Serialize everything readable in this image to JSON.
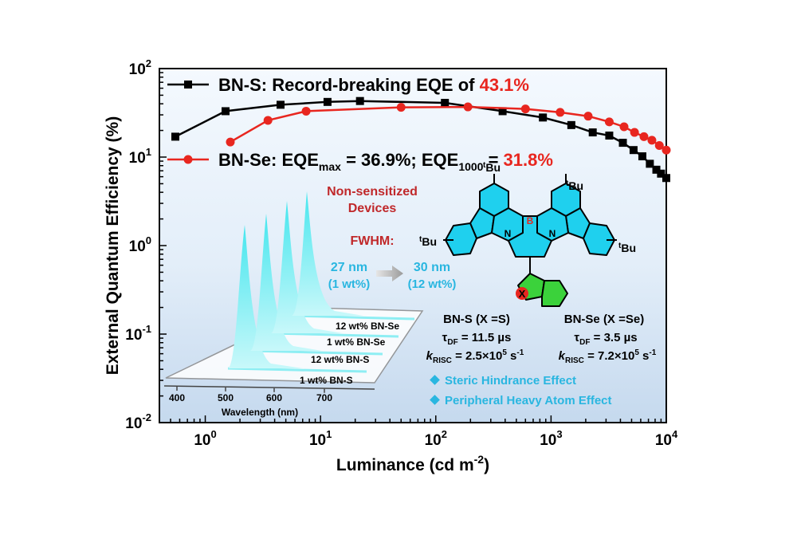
{
  "chart_data": {
    "type": "line",
    "xscale": "log",
    "yscale": "log",
    "xlim": [
      0.4,
      10000
    ],
    "ylim": [
      0.01,
      100
    ],
    "xlabel": "Luminance (cd m",
    "xlabel_sup": "-2",
    "xlabel_end": ")",
    "ylabel": "External Quantum Efficiency (%)",
    "xticks": [
      {
        "v": 1,
        "base": "10",
        "exp": "0"
      },
      {
        "v": 10,
        "base": "10",
        "exp": "1"
      },
      {
        "v": 100,
        "base": "10",
        "exp": "2"
      },
      {
        "v": 1000,
        "base": "10",
        "exp": "3"
      },
      {
        "v": 10000,
        "base": "10",
        "exp": "4"
      }
    ],
    "yticks": [
      {
        "v": 100,
        "base": "10",
        "exp": "2"
      },
      {
        "v": 10,
        "base": "10",
        "exp": "1"
      },
      {
        "v": 1,
        "base": "10",
        "exp": "0"
      },
      {
        "v": 0.1,
        "base": "10",
        "exp": "-1"
      },
      {
        "v": 0.01,
        "base": "10",
        "exp": "-2"
      }
    ],
    "series": [
      {
        "id": "bns",
        "color": "#000000",
        "marker": "square",
        "points": [
          [
            0.55,
            17
          ],
          [
            1.5,
            33
          ],
          [
            4.5,
            39
          ],
          [
            11.5,
            42
          ],
          [
            22,
            43
          ],
          [
            120,
            41
          ],
          [
            380,
            33
          ],
          [
            850,
            28
          ],
          [
            1500,
            23
          ],
          [
            2300,
            19
          ],
          [
            3200,
            17.5
          ],
          [
            4200,
            14.5
          ],
          [
            5200,
            12
          ],
          [
            6200,
            10.2
          ],
          [
            7200,
            8.4
          ],
          [
            8200,
            7.2
          ],
          [
            9000,
            6.5
          ],
          [
            10000,
            5.8
          ]
        ]
      },
      {
        "id": "bnse",
        "color": "#e8261f",
        "marker": "circle",
        "points": [
          [
            1.65,
            14.8
          ],
          [
            3.5,
            26
          ],
          [
            7.5,
            33
          ],
          [
            50,
            36.5
          ],
          [
            190,
            36.9
          ],
          [
            600,
            35
          ],
          [
            1200,
            32
          ],
          [
            2100,
            29
          ],
          [
            3200,
            25
          ],
          [
            4300,
            22
          ],
          [
            5300,
            19
          ],
          [
            6400,
            17
          ],
          [
            7500,
            15.5
          ],
          [
            8700,
            13.5
          ],
          [
            10000,
            12
          ]
        ]
      }
    ],
    "legend": [
      {
        "series": "bns",
        "text": "BN-S: Record-breaking EQE of ",
        "highlight": "43.1%"
      },
      {
        "series": "bnse",
        "t1": "BN-Se: EQE",
        "s1": "max",
        "t2": " = 36.9%; EQE",
        "s2": "1000",
        "t3": " = ",
        "highlight": "31.8%"
      }
    ],
    "inset": {
      "title_line1": "Non-sensitized",
      "title_line2": "Devices",
      "fwhm_label": "FWHM:",
      "fwhm_from": "27 nm",
      "fwhm_from_sub": "(1 wt%)",
      "fwhm_to": "30 nm",
      "fwhm_to_sub": "(12 wt%)",
      "spectra_labels": [
        "12 wt% BN-Se",
        "1 wt% BN-Se",
        "12 wt% BN-S",
        "1 wt% BN-S"
      ],
      "wavelength_ticks": [
        "400",
        "500",
        "600",
        "700"
      ],
      "wavelength_label": "Wavelength (nm)"
    },
    "molecule": {
      "boron": "B",
      "nitrogen": "N",
      "tbu_sup": "t",
      "tbu": "Bu",
      "hetero": "X"
    },
    "props": {
      "bns_head": "BN-S (X =S)",
      "bnse_head": "BN-Se (X =Se)",
      "tau_sym": "τ",
      "tau_sub": "DF",
      "bns_tau": " = 11.5 µs",
      "bnse_tau": " = 3.5 µs",
      "k_sym": "k",
      "k_sub": "RISC",
      "bns_k": " = 2.5×10",
      "bnse_k": " = 7.2×10",
      "k_exp": "5",
      "k_unit": " s",
      "k_unit_exp": "-1"
    },
    "effects": [
      "Steric Hindrance Effect",
      "Peripheral Heavy Atom Effect"
    ],
    "colors": {
      "accent": "#29b6e0",
      "red": "#e8261f",
      "darkred": "#c0282a",
      "molecule_blue": "#1fd0ee",
      "molecule_green": "#3bd23b"
    }
  }
}
